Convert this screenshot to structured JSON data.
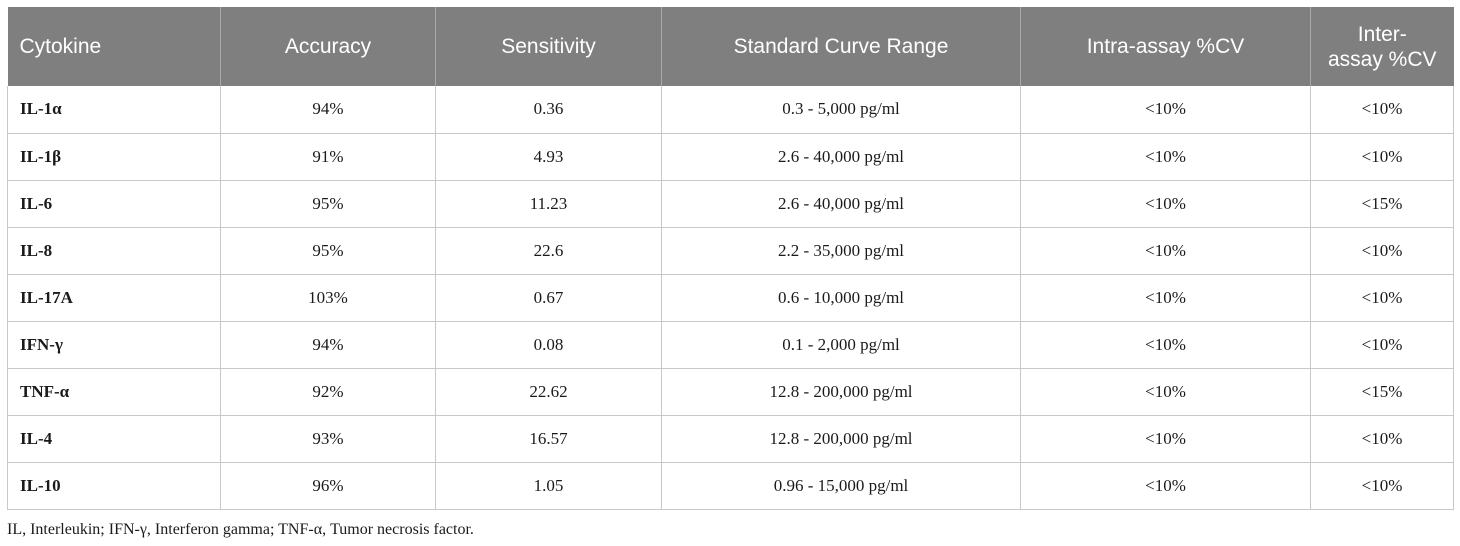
{
  "table": {
    "headers": [
      "Cytokine",
      "Accuracy",
      "Sensitivity",
      "Standard Curve Range",
      "Intra-assay %CV",
      "Inter-\nassay %CV"
    ],
    "header_lines": {
      "inter_line1": "Inter-",
      "inter_line2": "assay %CV"
    },
    "rows": [
      [
        "IL-1α",
        "94%",
        "0.36",
        "0.3 - 5,000 pg/ml",
        "<10%",
        "<10%"
      ],
      [
        "IL-1β",
        "91%",
        "4.93",
        "2.6 - 40,000 pg/ml",
        "<10%",
        "<10%"
      ],
      [
        "IL-6",
        "95%",
        "11.23",
        "2.6 - 40,000 pg/ml",
        "<10%",
        "<15%"
      ],
      [
        "IL-8",
        "95%",
        "22.6",
        "2.2 - 35,000 pg/ml",
        "<10%",
        "<10%"
      ],
      [
        "IL-17A",
        "103%",
        "0.67",
        "0.6 - 10,000 pg/ml",
        "<10%",
        "<10%"
      ],
      [
        "IFN-γ",
        "94%",
        "0.08",
        "0.1 - 2,000 pg/ml",
        "<10%",
        "<10%"
      ],
      [
        "TNF-α",
        "92%",
        "22.62",
        "12.8 - 200,000 pg/ml",
        "<10%",
        "<15%"
      ],
      [
        "IL-4",
        "93%",
        "16.57",
        "12.8 - 200,000 pg/ml",
        "<10%",
        "<10%"
      ],
      [
        "IL-10",
        "96%",
        "1.05",
        "0.96 - 15,000 pg/ml",
        "<10%",
        "<10%"
      ]
    ]
  },
  "footnote": "IL, Interleukin; IFN-γ, Interferon gamma; TNF-α, Tumor necrosis factor.",
  "colors": {
    "header_bg": "#7f7f7f",
    "header_text": "#ffffff",
    "grid_line": "#c8c8c8"
  }
}
